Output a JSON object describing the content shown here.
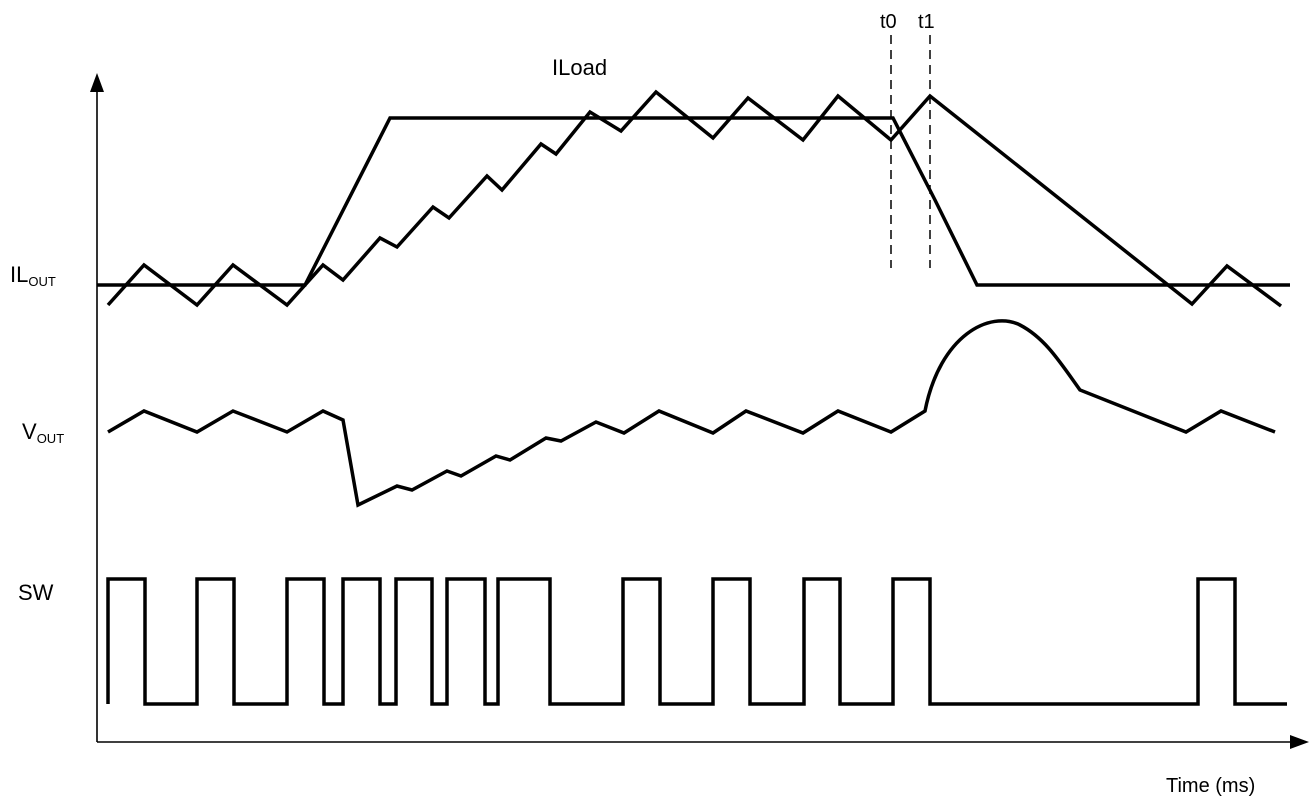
{
  "diagram": {
    "signals": {
      "il_out": {
        "main": "IL",
        "sub": "OUT"
      },
      "v_out": {
        "main": "V",
        "sub": "OUT"
      },
      "sw": {
        "main": "SW"
      },
      "iload": {
        "main": "ILoad"
      }
    },
    "markers": {
      "t0": "t0",
      "t1": "t1"
    },
    "x_axis_label": "Time (ms)",
    "colors": {
      "ink": "#000000",
      "background": "#ffffff"
    }
  }
}
